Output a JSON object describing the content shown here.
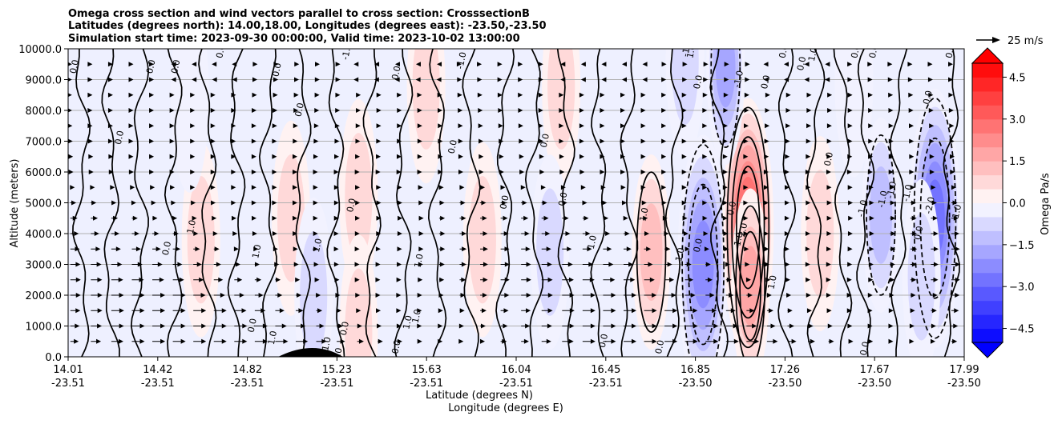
{
  "chart_data": {
    "type": "contourf+contour+quiver",
    "title_lines": [
      "Omega cross section and wind vectors parallel to cross section: CrosssectionB",
      "Latitudes (degrees north): 14.00,18.00, Longitudes (degrees east): -23.50,-23.50",
      "Simulation start time: 2023-09-30 00:00:00, Valid time: 2023-10-02 13:00:00"
    ],
    "ylabel": "Altitude (meters)",
    "xlabel_line1": "Latitude (degrees N)",
    "xlabel_line2": "Longitude (degrees E)",
    "ylim": [
      0,
      10000
    ],
    "yticks": [
      "0.0",
      "1000.0",
      "2000.0",
      "3000.0",
      "4000.0",
      "5000.0",
      "6000.0",
      "7000.0",
      "8000.0",
      "9000.0",
      "10000.0"
    ],
    "xticks": [
      {
        "lat": "14.01",
        "lon": "-23.51"
      },
      {
        "lat": "14.42",
        "lon": "-23.51"
      },
      {
        "lat": "14.82",
        "lon": "-23.51"
      },
      {
        "lat": "15.23",
        "lon": "-23.51"
      },
      {
        "lat": "15.63",
        "lon": "-23.51"
      },
      {
        "lat": "16.04",
        "lon": "-23.51"
      },
      {
        "lat": "16.45",
        "lon": "-23.51"
      },
      {
        "lat": "16.85",
        "lon": "-23.50"
      },
      {
        "lat": "17.26",
        "lon": "-23.50"
      },
      {
        "lat": "17.67",
        "lon": "-23.50"
      },
      {
        "lat": "17.99",
        "lon": "-23.50"
      }
    ],
    "grid": "horizontal",
    "colorbar": {
      "label": "Omega Pa/s",
      "range": [
        -5,
        5
      ],
      "levels": 20,
      "ticks": [
        "−4.5",
        "−3.0",
        "−1.5",
        "0.0",
        "1.5",
        "3.0",
        "4.5"
      ],
      "tick_values": [
        -4.5,
        -3.0,
        -1.5,
        0.0,
        1.5,
        3.0,
        4.5
      ],
      "cmap": "bwr",
      "extend": "both"
    },
    "quiver_key": {
      "label": "25 m/s",
      "value": 25
    },
    "contour_levels": [
      -2.0,
      -1.0,
      0.0,
      1.0,
      2.0
    ],
    "omega_cells": [
      {
        "x": 16.6,
        "z": 3400,
        "value": 1.3
      },
      {
        "x": 16.83,
        "z": 3000,
        "value": -2.4
      },
      {
        "x": 17.03,
        "z": 4200,
        "value": 3.5
      },
      {
        "x": 17.04,
        "z": 2300,
        "value": 2.0
      },
      {
        "x": 17.62,
        "z": 4600,
        "value": -1.4
      },
      {
        "x": 17.86,
        "z": 4500,
        "value": -2.7
      },
      {
        "x": 17.8,
        "z": 2600,
        "value": -0.9
      },
      {
        "x": 15.0,
        "z": 4500,
        "value": 0.8
      },
      {
        "x": 14.6,
        "z": 3800,
        "value": 0.9
      },
      {
        "x": 15.3,
        "z": 5200,
        "value": 0.9
      },
      {
        "x": 15.85,
        "z": 3800,
        "value": 0.9
      },
      {
        "x": 15.1,
        "z": 2000,
        "value": -0.6
      },
      {
        "x": 14.55,
        "z": 8500,
        "value": -0.5
      },
      {
        "x": 15.6,
        "z": 8800,
        "value": 0.7
      },
      {
        "x": 16.2,
        "z": 8800,
        "value": 0.7
      },
      {
        "x": 16.75,
        "z": 9600,
        "value": -0.9
      },
      {
        "x": 16.93,
        "z": 9400,
        "value": -1.6
      },
      {
        "x": 17.5,
        "z": 9000,
        "value": -0.4
      },
      {
        "x": 16.15,
        "z": 3400,
        "value": -0.6
      },
      {
        "x": 17.35,
        "z": 4000,
        "value": 0.6
      },
      {
        "x": 15.3,
        "z": 800,
        "value": 0.8
      }
    ],
    "contour_labels": [
      {
        "text": "0.0",
        "x": 14.05,
        "z": 9400
      },
      {
        "text": "0.0",
        "x": 14.39,
        "z": 9400
      },
      {
        "text": "0.0",
        "x": 14.5,
        "z": 9400
      },
      {
        "text": "0.0",
        "x": 14.7,
        "z": 9900
      },
      {
        "text": "0.0",
        "x": 14.95,
        "z": 9300
      },
      {
        "text": "0.0",
        "x": 15.48,
        "z": 9200
      },
      {
        "text": "-1.0",
        "x": 15.77,
        "z": 9600
      },
      {
        "text": "-1.0",
        "x": 15.26,
        "z": 9900
      },
      {
        "text": "0.0",
        "x": 15.05,
        "z": 8000
      },
      {
        "text": "0.0",
        "x": 14.25,
        "z": 7100
      },
      {
        "text": "0.0",
        "x": 15.73,
        "z": 6800
      },
      {
        "text": "0.0",
        "x": 16.14,
        "z": 7000
      },
      {
        "text": "0.0",
        "x": 15.96,
        "z": 5000
      },
      {
        "text": "0.0",
        "x": 16.22,
        "z": 5100
      },
      {
        "text": "0.0",
        "x": 15.28,
        "z": 4900
      },
      {
        "text": "0.0",
        "x": 14.46,
        "z": 3500
      },
      {
        "text": "1.0",
        "x": 14.57,
        "z": 4200
      },
      {
        "text": "1.0",
        "x": 14.86,
        "z": 3400
      },
      {
        "text": "1.0",
        "x": 15.13,
        "z": 3600
      },
      {
        "text": "1.0",
        "x": 15.58,
        "z": 3100
      },
      {
        "text": "1.0",
        "x": 15.53,
        "z": 1100
      },
      {
        "text": "1.0",
        "x": 15.57,
        "z": 1300
      },
      {
        "text": "0.0",
        "x": 15.25,
        "z": 900
      },
      {
        "text": "0.0",
        "x": 14.84,
        "z": 1000
      },
      {
        "text": "1.0",
        "x": 14.93,
        "z": 600
      },
      {
        "text": "1.0",
        "x": 15.17,
        "z": 400
      },
      {
        "text": "0.0",
        "x": 15.22,
        "z": 50
      },
      {
        "text": "0.0",
        "x": 15.48,
        "z": 300
      },
      {
        "text": "0.0",
        "x": 16.4,
        "z": 500
      },
      {
        "text": "0.0",
        "x": 16.65,
        "z": 300
      },
      {
        "text": "1.0",
        "x": 16.35,
        "z": 3700
      },
      {
        "text": "1.0",
        "x": 16.58,
        "z": 4600
      },
      {
        "text": "1.0",
        "x": 16.74,
        "z": 3300
      },
      {
        "text": "0.0",
        "x": 16.82,
        "z": 3600
      },
      {
        "text": "0.0",
        "x": 16.97,
        "z": 4800
      },
      {
        "text": "1.0",
        "x": 17.0,
        "z": 3800
      },
      {
        "text": "2.0",
        "x": 17.02,
        "z": 4100
      },
      {
        "text": "1.0",
        "x": 17.15,
        "z": 2400
      },
      {
        "text": "0.0",
        "x": 16.82,
        "z": 8900
      },
      {
        "text": "-1.0",
        "x": 17.0,
        "z": 9000
      },
      {
        "text": "0.0",
        "x": 17.12,
        "z": 8900
      },
      {
        "text": "1.0",
        "x": 16.79,
        "z": 9900
      },
      {
        "text": "-1.0",
        "x": 16.77,
        "z": 10000
      },
      {
        "text": "0.0",
        "x": 17.2,
        "z": 9900
      },
      {
        "text": "0.0",
        "x": 17.28,
        "z": 9500
      },
      {
        "text": "1.0",
        "x": 17.33,
        "z": 9800
      },
      {
        "text": "0.0",
        "x": 17.52,
        "z": 9900
      },
      {
        "text": "0.0",
        "x": 17.6,
        "z": 9900
      },
      {
        "text": "0.0",
        "x": 17.4,
        "z": 6400
      },
      {
        "text": "-1.0",
        "x": 17.55,
        "z": 4800
      },
      {
        "text": "-1.0",
        "x": 17.64,
        "z": 5100
      },
      {
        "text": "-1.0",
        "x": 17.68,
        "z": 5400
      },
      {
        "text": "-1.0",
        "x": 17.75,
        "z": 5300
      },
      {
        "text": "0.0",
        "x": 17.8,
        "z": 4000
      },
      {
        "text": "-2.0",
        "x": 17.85,
        "z": 4900
      },
      {
        "text": "1.0",
        "x": 17.97,
        "z": 4700
      },
      {
        "text": "0.0",
        "x": 17.84,
        "z": 8400
      },
      {
        "text": "0.0",
        "x": 17.94,
        "z": 9900
      },
      {
        "text": "0.0",
        "x": 17.56,
        "z": 250
      }
    ]
  }
}
